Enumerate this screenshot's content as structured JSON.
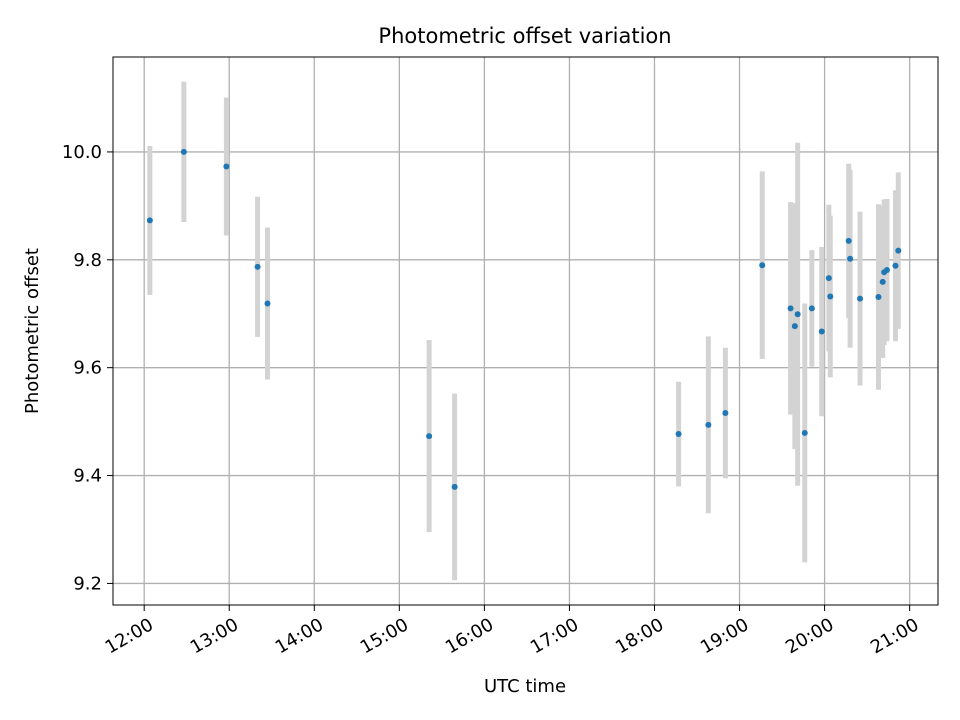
{
  "chart_data": {
    "type": "scatter",
    "title": "Photometric offset variation",
    "xlabel": "UTC time",
    "ylabel": "Photometric offset",
    "grid": true,
    "legend": "none",
    "xlim": [
      "11:38",
      "21:20"
    ],
    "ylim": [
      9.16,
      10.176
    ],
    "x_ticks": [
      "12:00",
      "13:00",
      "14:00",
      "15:00",
      "16:00",
      "17:00",
      "18:00",
      "19:00",
      "20:00",
      "21:00"
    ],
    "y_ticks": [
      "9.2",
      "9.4",
      "9.6",
      "9.8",
      "10.0"
    ],
    "colors": {
      "point": "#1f77b4",
      "errorbar": "#d3d3d3",
      "grid": "#b0b0b0"
    },
    "series": [
      {
        "points": [
          {
            "x": "12:04",
            "y": 9.873,
            "err": 0.138
          },
          {
            "x": "12:28",
            "y": 10.0,
            "err": 0.13
          },
          {
            "x": "12:58",
            "y": 9.973,
            "err": 0.128
          },
          {
            "x": "13:20",
            "y": 9.787,
            "err": 0.13
          },
          {
            "x": "13:27",
            "y": 9.719,
            "err": 0.141
          },
          {
            "x": "15:21",
            "y": 9.473,
            "err": 0.178
          },
          {
            "x": "15:39",
            "y": 9.379,
            "err": 0.173
          },
          {
            "x": "18:17",
            "y": 9.477,
            "err": 0.097
          },
          {
            "x": "18:38",
            "y": 9.494,
            "err": 0.164
          },
          {
            "x": "18:50",
            "y": 9.516,
            "err": 0.121
          },
          {
            "x": "19:16",
            "y": 9.79,
            "err": 0.174
          },
          {
            "x": "19:36",
            "y": 9.71,
            "err": 0.197
          },
          {
            "x": "19:39",
            "y": 9.677,
            "err": 0.228
          },
          {
            "x": "19:41",
            "y": 9.699,
            "err": 0.318
          },
          {
            "x": "19:46",
            "y": 9.479,
            "err": 0.24
          },
          {
            "x": "19:51",
            "y": 9.71,
            "err": 0.108
          },
          {
            "x": "19:58",
            "y": 9.667,
            "err": 0.157
          },
          {
            "x": "20:03",
            "y": 9.766,
            "err": 0.136
          },
          {
            "x": "20:04",
            "y": 9.732,
            "err": 0.15
          },
          {
            "x": "20:17",
            "y": 9.835,
            "err": 0.143
          },
          {
            "x": "20:18",
            "y": 9.802,
            "err": 0.165
          },
          {
            "x": "20:25",
            "y": 9.728,
            "err": 0.161
          },
          {
            "x": "20:38",
            "y": 9.731,
            "err": 0.172
          },
          {
            "x": "20:41",
            "y": 9.759,
            "err": 0.141
          },
          {
            "x": "20:42",
            "y": 9.777,
            "err": 0.135
          },
          {
            "x": "20:44",
            "y": 9.781,
            "err": 0.132
          },
          {
            "x": "20:50",
            "y": 9.789,
            "err": 0.14
          },
          {
            "x": "20:52",
            "y": 9.817,
            "err": 0.145
          }
        ]
      }
    ]
  }
}
